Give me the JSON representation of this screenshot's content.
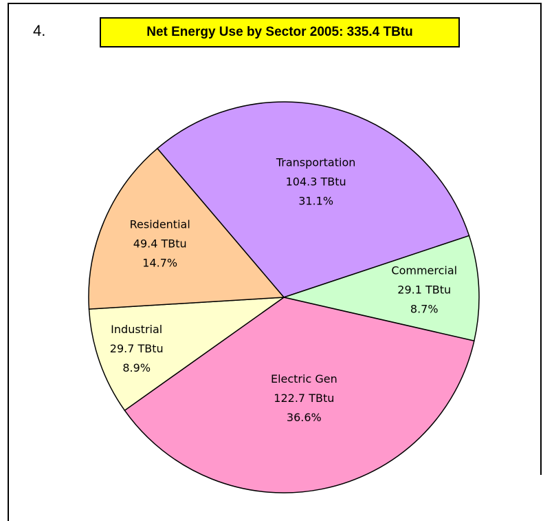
{
  "chart_data": {
    "type": "pie",
    "number": "4.",
    "title": "Net Energy  Use by Sector  2005:  335.4 TBtu",
    "categories": [
      "Transportation",
      "Commercial",
      "Electric Gen",
      "Industrial",
      "Residential"
    ],
    "values": [
      104.3,
      29.1,
      122.7,
      29.7,
      49.4
    ],
    "value_labels": [
      "104.3 TBtu",
      "29.1 TBtu",
      "122.7 TBtu",
      "29.7 TBtu",
      "49.4 TBtu"
    ],
    "percent_labels": [
      "31.1%",
      "8.7%",
      "36.6%",
      "8.9%",
      "14.7%"
    ],
    "colors": [
      "#cc99ff",
      "#ccffcc",
      "#ff99cc",
      "#ffffcc",
      "#ffcc99"
    ]
  }
}
